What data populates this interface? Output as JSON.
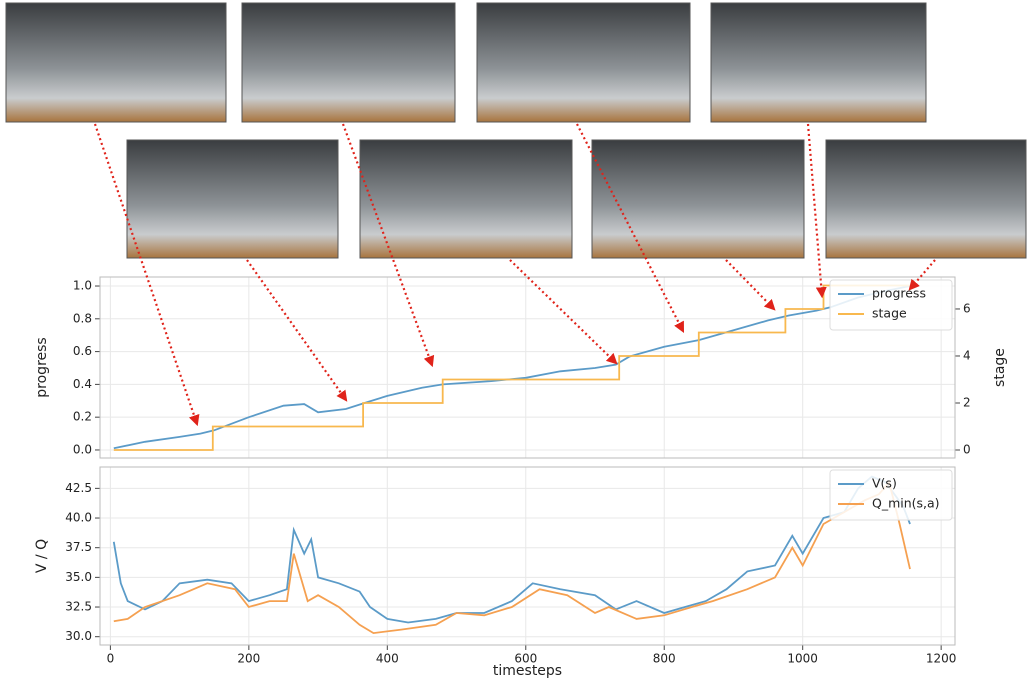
{
  "chart_data": [
    {
      "type": "line",
      "y_label": "progress",
      "y2_label": "stage",
      "xlim": [
        -15,
        1220
      ],
      "ylim": [
        -0.049,
        1.055
      ],
      "yticks": [
        {
          "value": 0,
          "label": "0.0"
        },
        0.2,
        0.4,
        0.6,
        0.8,
        {
          "value": 1,
          "label": "1.0"
        }
      ],
      "y2lim": [
        -0.34,
        7.36
      ],
      "y2ticks": [
        0,
        2,
        4,
        6
      ],
      "grid": true,
      "legend": "upper right",
      "series": [
        {
          "name": "progress",
          "color": "#5b9bc8",
          "x": [
            5,
            50,
            100,
            130,
            150,
            200,
            250,
            280,
            300,
            340,
            370,
            400,
            450,
            480,
            550,
            600,
            650,
            700,
            730,
            750,
            800,
            850,
            900,
            950,
            980,
            1020,
            1040,
            1080,
            1120,
            1155
          ],
          "values": [
            0.01,
            0.05,
            0.08,
            0.1,
            0.12,
            0.2,
            0.27,
            0.28,
            0.23,
            0.25,
            0.29,
            0.33,
            0.38,
            0.4,
            0.42,
            0.44,
            0.48,
            0.5,
            0.52,
            0.57,
            0.63,
            0.67,
            0.73,
            0.79,
            0.82,
            0.85,
            0.87,
            0.93,
            0.97,
            1.0
          ]
        },
        {
          "name": "stage",
          "color": "#f8b84e",
          "axis": "y2",
          "x": [
            5,
            148,
            148,
            365,
            365,
            480,
            480,
            735,
            735,
            850,
            850,
            975,
            975,
            1030,
            1030,
            1155
          ],
          "values": [
            0,
            0,
            1,
            1,
            2,
            2,
            3,
            3,
            4,
            4,
            5,
            5,
            6,
            6,
            7,
            7
          ]
        }
      ]
    },
    {
      "type": "line",
      "x_label": "timesteps",
      "y_label": "V / Q",
      "xlim": [
        -15,
        1220
      ],
      "xticks": [
        0,
        200,
        400,
        600,
        800,
        1000,
        1200
      ],
      "ylim": [
        29.3,
        44.3
      ],
      "yticks": [
        {
          "value": 30,
          "label": "30.0"
        },
        32.5,
        {
          "value": 35,
          "label": "35.0"
        },
        37.5,
        {
          "value": 40,
          "label": "40.0"
        },
        42.5
      ],
      "grid": true,
      "legend": "upper right",
      "series": [
        {
          "name": "V(s)",
          "color": "#5b9bc8",
          "x": [
            5,
            15,
            25,
            50,
            75,
            100,
            140,
            175,
            200,
            230,
            255,
            265,
            280,
            290,
            300,
            330,
            360,
            375,
            400,
            430,
            470,
            500,
            540,
            580,
            610,
            650,
            700,
            730,
            760,
            800,
            830,
            860,
            890,
            920,
            960,
            985,
            1000,
            1030,
            1060,
            1080,
            1100,
            1120,
            1145,
            1155
          ],
          "values": [
            38,
            34.5,
            33,
            32.3,
            33,
            34.5,
            34.8,
            34.5,
            33,
            33.5,
            34,
            39,
            37,
            38.2,
            35,
            34.5,
            33.8,
            32.5,
            31.5,
            31.2,
            31.5,
            32,
            32,
            33,
            34.5,
            34,
            33.5,
            32.3,
            33,
            32,
            32.5,
            33,
            34,
            35.5,
            36,
            38.5,
            37,
            40,
            40.5,
            42.5,
            43.5,
            43,
            41,
            39.5
          ]
        },
        {
          "name": "Q_min(s,a)",
          "color": "#f5a050",
          "x": [
            5,
            25,
            50,
            100,
            140,
            180,
            200,
            230,
            255,
            265,
            285,
            300,
            330,
            360,
            380,
            420,
            470,
            500,
            540,
            580,
            620,
            660,
            700,
            720,
            760,
            800,
            840,
            870,
            920,
            960,
            985,
            1000,
            1030,
            1060,
            1090,
            1110,
            1125,
            1140,
            1155
          ],
          "values": [
            31.3,
            31.5,
            32.5,
            33.5,
            34.5,
            34,
            32.5,
            33,
            33,
            37,
            33,
            33.5,
            32.5,
            31,
            30.3,
            30.6,
            31,
            32,
            31.8,
            32.5,
            34,
            33.5,
            32,
            32.5,
            31.5,
            31.8,
            32.5,
            33,
            34,
            35,
            37.5,
            36,
            39.5,
            40.5,
            41.5,
            42,
            43,
            39.5,
            35.7
          ]
        }
      ]
    }
  ]
}
